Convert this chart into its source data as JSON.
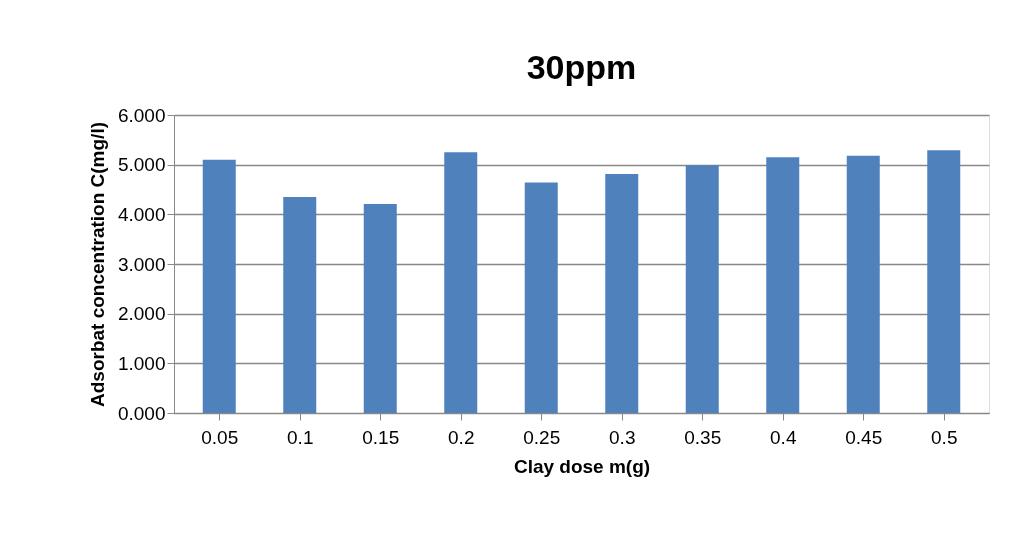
{
  "chart_data": {
    "type": "bar",
    "title": "30ppm",
    "xlabel": "Clay dose m(g)",
    "ylabel": "Adsorbat concentration C(mg/l)",
    "categories": [
      "0.05",
      "0.1",
      "0.15",
      "0.2",
      "0.25",
      "0.3",
      "0.35",
      "0.4",
      "0.45",
      "0.5"
    ],
    "values": [
      5.1,
      4.35,
      4.21,
      5.25,
      4.64,
      4.81,
      4.99,
      5.15,
      5.18,
      5.29
    ],
    "color": "#4f81bd",
    "ylim": [
      0,
      6
    ],
    "yticks": [
      {
        "value": 0,
        "label": "0.000"
      },
      {
        "value": 1,
        "label": "1.000"
      },
      {
        "value": 2,
        "label": "2.000"
      },
      {
        "value": 3,
        "label": "3.000"
      },
      {
        "value": 4,
        "label": "4.000"
      },
      {
        "value": 5,
        "label": "5.000"
      },
      {
        "value": 6,
        "label": "6.000"
      }
    ],
    "grid": "y"
  }
}
